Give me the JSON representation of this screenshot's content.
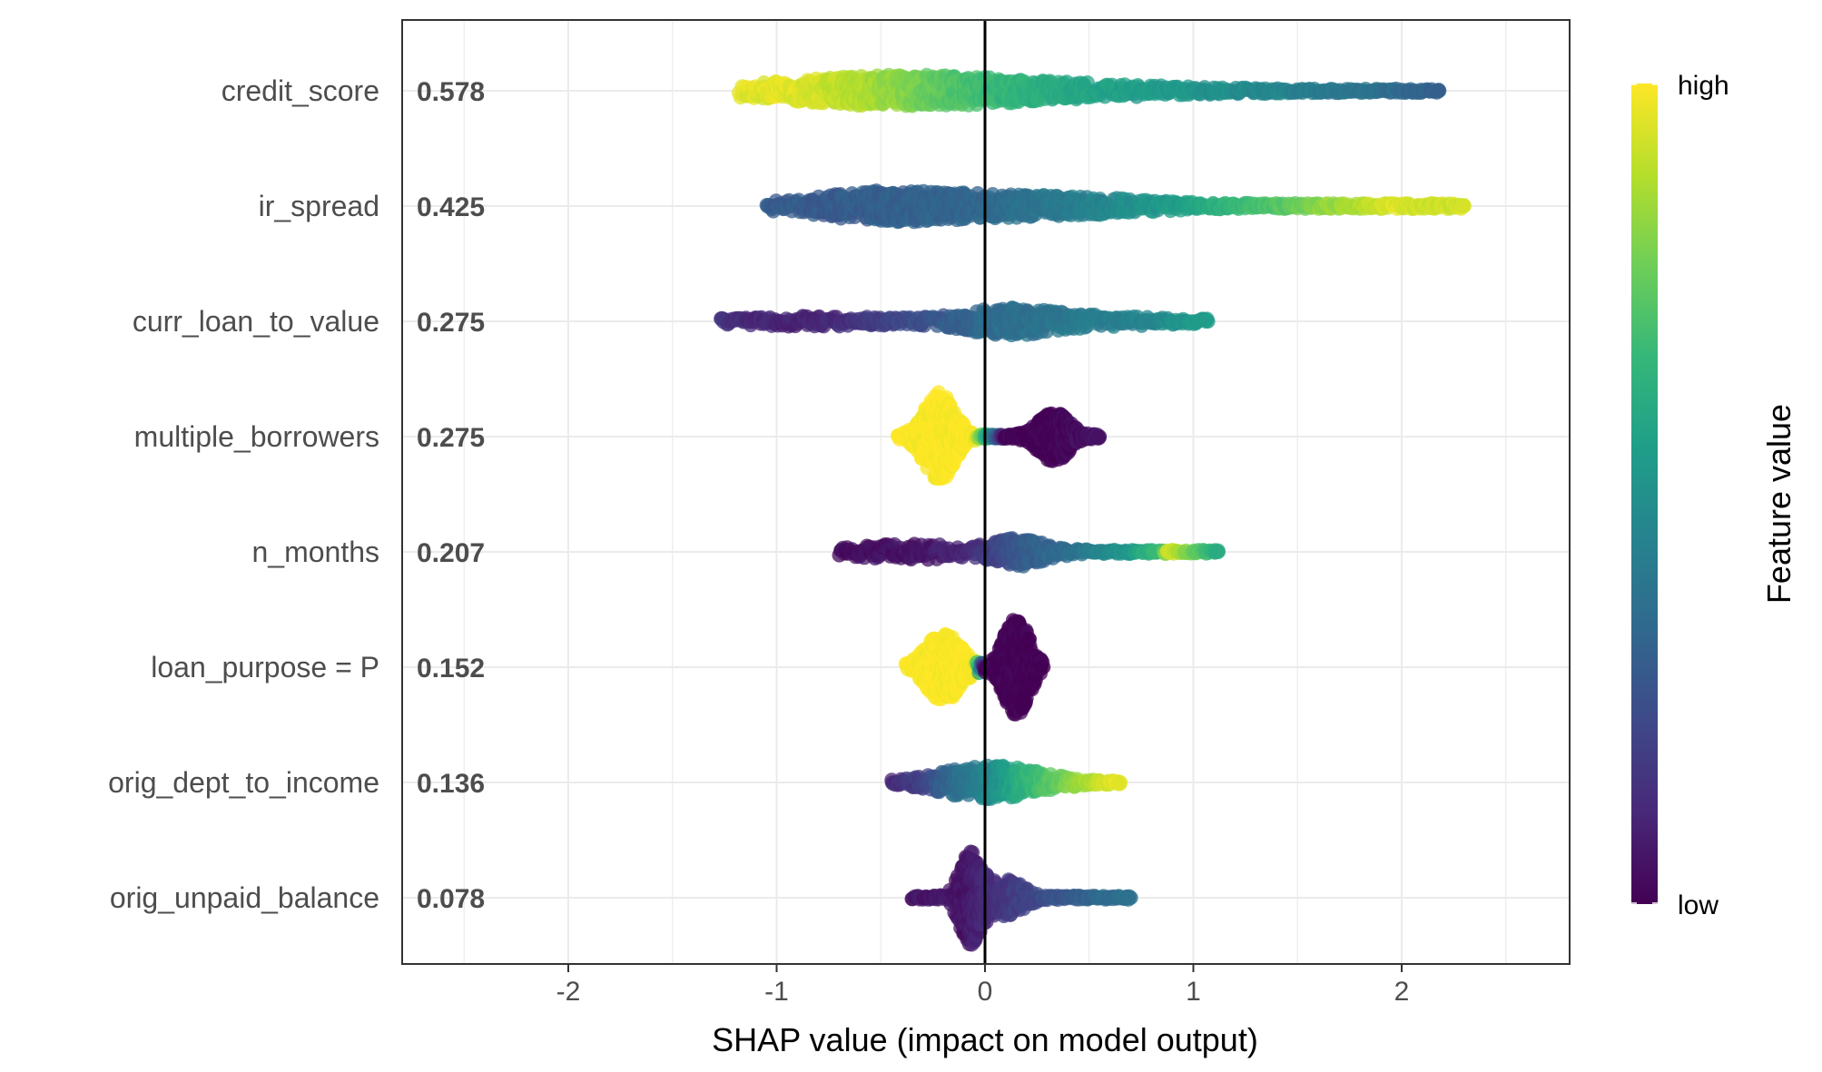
{
  "chart_data": {
    "type": "scatter",
    "subtype": "shap-beeswarm",
    "title": "",
    "xlabel": "SHAP value (impact on model output)",
    "ylabel": "",
    "xlim": [
      -2.8,
      2.8
    ],
    "xticks": [
      -2,
      -1,
      0,
      1,
      2
    ],
    "xtick_labels": [
      "-2",
      "-1",
      "0",
      "1",
      "2"
    ],
    "zero_line": true,
    "features": [
      {
        "name": "credit_score",
        "importance": "0.578"
      },
      {
        "name": "ir_spread",
        "importance": "0.425"
      },
      {
        "name": "curr_loan_to_value",
        "importance": "0.275"
      },
      {
        "name": "multiple_borrowers",
        "importance": "0.275"
      },
      {
        "name": "n_months",
        "importance": "0.207"
      },
      {
        "name": "loan_purpose = P",
        "importance": "0.152"
      },
      {
        "name": "orig_dept_to_income",
        "importance": "0.136"
      },
      {
        "name": "orig_unpaid_balance",
        "importance": "0.078"
      }
    ],
    "distributions": [
      [
        [
          -1.18,
          0.95
        ],
        [
          -1.0,
          0.96
        ],
        [
          -0.8,
          0.93
        ],
        [
          -0.6,
          0.88
        ],
        [
          -0.4,
          0.82
        ],
        [
          -0.2,
          0.74
        ],
        [
          0.0,
          0.68
        ],
        [
          0.2,
          0.64
        ],
        [
          0.4,
          0.6
        ],
        [
          0.7,
          0.56
        ],
        [
          1.0,
          0.52
        ],
        [
          1.3,
          0.47
        ],
        [
          1.6,
          0.42
        ],
        [
          1.9,
          0.37
        ],
        [
          2.05,
          0.33
        ],
        [
          2.15,
          0.3
        ],
        [
          2.18,
          0.3
        ]
      ],
      [
        [
          -1.05,
          0.3
        ],
        [
          -0.8,
          0.28
        ],
        [
          -0.5,
          0.3
        ],
        [
          -0.2,
          0.32
        ],
        [
          0.0,
          0.33
        ],
        [
          0.2,
          0.38
        ],
        [
          0.5,
          0.44
        ],
        [
          0.8,
          0.52
        ],
        [
          1.0,
          0.58
        ],
        [
          1.2,
          0.66
        ],
        [
          1.45,
          0.74
        ],
        [
          1.6,
          0.82
        ],
        [
          1.8,
          0.88
        ],
        [
          1.95,
          0.95
        ],
        [
          2.15,
          0.92
        ],
        [
          2.3,
          0.94
        ]
      ],
      [
        [
          -1.27,
          0.15
        ],
        [
          -1.0,
          0.1
        ],
        [
          -0.8,
          0.1
        ],
        [
          -0.6,
          0.15
        ],
        [
          -0.4,
          0.22
        ],
        [
          -0.2,
          0.28
        ],
        [
          0.0,
          0.35
        ],
        [
          0.2,
          0.37
        ],
        [
          0.4,
          0.4
        ],
        [
          0.6,
          0.43
        ],
        [
          0.8,
          0.46
        ],
        [
          0.9,
          0.5
        ],
        [
          1.07,
          0.55
        ]
      ],
      [
        [
          -0.42,
          1.0
        ],
        [
          -0.2,
          1.0
        ],
        [
          -0.05,
          1.0
        ],
        [
          0.1,
          0.0
        ],
        [
          0.32,
          0.0
        ],
        [
          0.55,
          0.05
        ]
      ],
      [
        [
          -0.7,
          0.03
        ],
        [
          -0.5,
          0.04
        ],
        [
          -0.3,
          0.06
        ],
        [
          -0.1,
          0.1
        ],
        [
          0.05,
          0.2
        ],
        [
          0.2,
          0.3
        ],
        [
          0.4,
          0.35
        ],
        [
          0.55,
          0.45
        ],
        [
          0.7,
          0.55
        ],
        [
          0.85,
          0.7
        ],
        [
          0.88,
          0.95
        ],
        [
          1.12,
          0.6
        ]
      ],
      [
        [
          -0.38,
          1.0
        ],
        [
          -0.2,
          1.0
        ],
        [
          -0.05,
          1.0
        ],
        [
          0.0,
          0.0
        ],
        [
          0.12,
          0.0
        ],
        [
          0.28,
          0.0
        ]
      ],
      [
        [
          -0.45,
          0.12
        ],
        [
          -0.3,
          0.2
        ],
        [
          -0.15,
          0.35
        ],
        [
          0.0,
          0.45
        ],
        [
          0.1,
          0.55
        ],
        [
          0.2,
          0.65
        ],
        [
          0.3,
          0.72
        ],
        [
          0.4,
          0.8
        ],
        [
          0.5,
          0.88
        ],
        [
          0.6,
          0.94
        ],
        [
          0.65,
          0.96
        ]
      ],
      [
        [
          -0.35,
          0.05
        ],
        [
          -0.2,
          0.06
        ],
        [
          -0.1,
          0.05
        ],
        [
          0.0,
          0.12
        ],
        [
          0.15,
          0.18
        ],
        [
          0.3,
          0.24
        ],
        [
          0.45,
          0.3
        ],
        [
          0.55,
          0.34
        ],
        [
          0.7,
          0.38
        ]
      ]
    ],
    "colorbar": {
      "title": "Feature value",
      "high_label": "high",
      "low_label": "low",
      "colormap": "viridis",
      "colors": [
        "#440154",
        "#482878",
        "#3e4989",
        "#31688e",
        "#26828e",
        "#1f9e89",
        "#35b779",
        "#6ece58",
        "#b5de2b",
        "#fde725"
      ]
    }
  }
}
